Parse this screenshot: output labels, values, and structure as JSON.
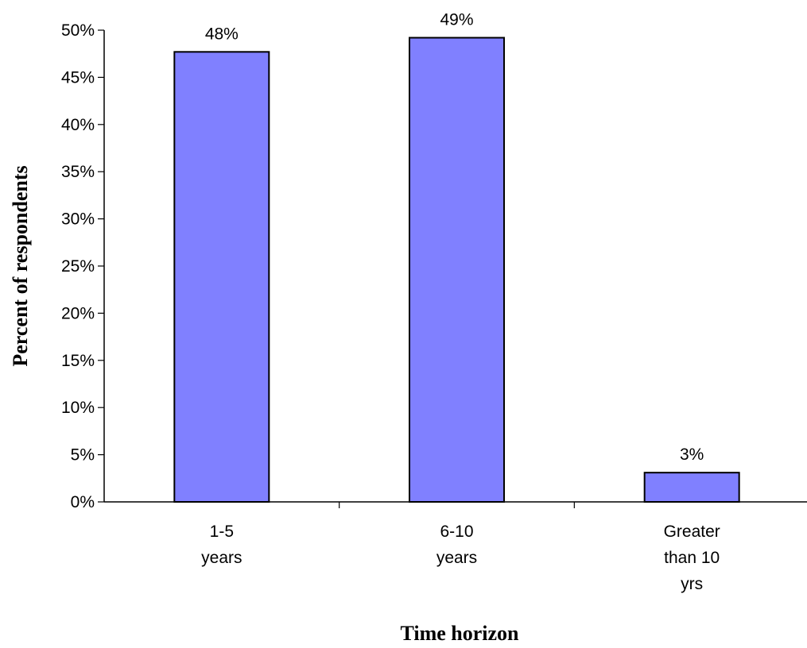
{
  "chart_data": {
    "type": "bar",
    "categories": [
      [
        "1-5",
        "years"
      ],
      [
        "6-10",
        "years"
      ],
      [
        "Greater",
        "than 10",
        "yrs"
      ]
    ],
    "values": [
      47.7,
      49.2,
      3.1
    ],
    "data_labels": [
      "48%",
      "49%",
      "3%"
    ],
    "title": "",
    "xlabel": "Time horizon",
    "ylabel": "Percent of respondents",
    "ylim": [
      0,
      50
    ],
    "yticks": [
      0,
      5,
      10,
      15,
      20,
      25,
      30,
      35,
      40,
      45,
      50
    ],
    "ytick_labels": [
      "0%",
      "5%",
      "10%",
      "15%",
      "20%",
      "25%",
      "30%",
      "35%",
      "40%",
      "45%",
      "50%"
    ],
    "grid": false,
    "legend": "none",
    "bar_color": "#8080ff",
    "bar_edge_color": "#000000"
  }
}
